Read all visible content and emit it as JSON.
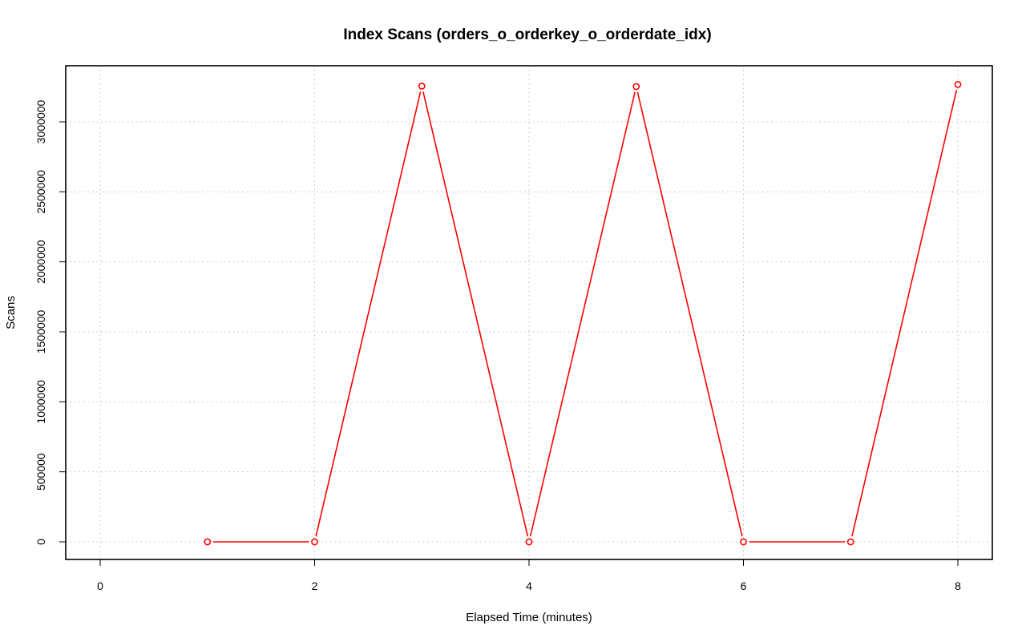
{
  "chart_data": {
    "type": "line",
    "title": "Index Scans (orders_o_orderkey_o_orderdate_idx)",
    "xlabel": "Elapsed Time (minutes)",
    "ylabel": "Scans",
    "xlim": [
      0,
      8
    ],
    "ylim": [
      0,
      3250000
    ],
    "xticks": [
      0,
      2,
      4,
      6,
      8
    ],
    "yticks": [
      0,
      500000,
      1000000,
      1500000,
      2000000,
      2500000,
      3000000
    ],
    "grid": true,
    "series": [
      {
        "color": "#ff0000",
        "x": [
          1,
          2,
          3,
          4,
          5,
          6,
          7,
          8
        ],
        "y": [
          0,
          0,
          3255000,
          0,
          3252000,
          0,
          0,
          3267000
        ]
      }
    ]
  }
}
